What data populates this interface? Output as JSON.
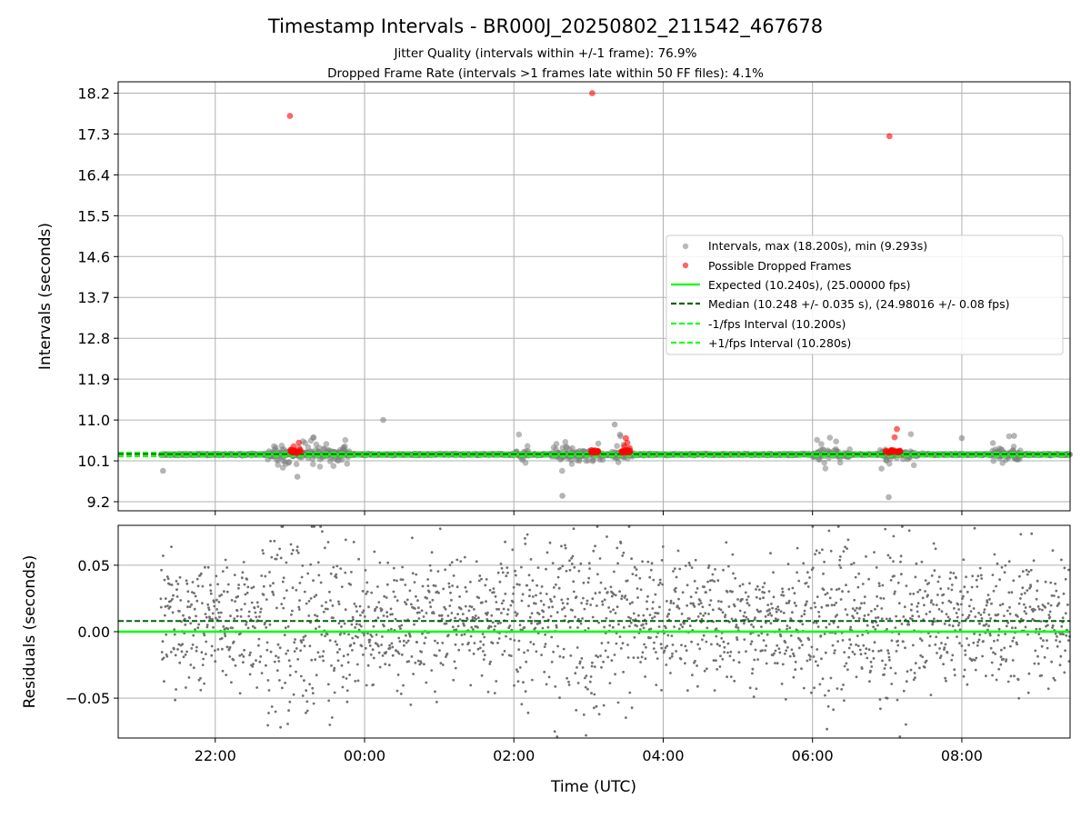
{
  "chart_data": {
    "title": "Timestamp Intervals - BR000J_20250802_211542_467678",
    "subtitles": [
      "Jitter Quality (intervals within +/-1 frame): 76.9%",
      "Dropped Frame Rate (intervals >1 frames late within 50 FF files): 4.1%"
    ],
    "xlabel": "Time (UTC)",
    "x_ticks": [
      "22:00",
      "00:00",
      "02:00",
      "04:00",
      "06:00",
      "08:00"
    ],
    "x_tick_hours": [
      22,
      24,
      26,
      28,
      30,
      32
    ],
    "x_range_hours": [
      20.7,
      33.45
    ],
    "data_start_hours": 21.27,
    "data_end_hours": 33.45,
    "top_panel": {
      "type": "scatter",
      "ylabel": "Intervals (seconds)",
      "ylim": [
        9.0,
        18.45
      ],
      "y_ticks": [
        9.2,
        10.1,
        11.0,
        11.9,
        12.8,
        13.7,
        14.6,
        15.5,
        16.4,
        17.3,
        18.2
      ],
      "y_tick_labels": [
        "9.2",
        "10.1",
        "11.0",
        "11.9",
        "12.8",
        "13.7",
        "14.6",
        "15.5",
        "16.4",
        "17.3",
        "18.2"
      ],
      "grid": true,
      "legend_position": "center-right",
      "colors": {
        "intervals": "#808080",
        "dropped": "#ff0000",
        "expected": "#00ff00",
        "median": "#006400",
        "fps_bounds": "#1aff1a"
      },
      "series": [
        {
          "name": "Intervals, max (18.200s), min (9.293s)",
          "kind": "points",
          "max": 18.2,
          "min": 9.293
        },
        {
          "name": "Possible Dropped Frames",
          "kind": "points",
          "points": [
            [
              23.0,
              17.7
            ],
            [
              27.05,
              18.2
            ],
            [
              31.03,
              17.25
            ],
            [
              23.02,
              10.35
            ],
            [
              23.05,
              10.42
            ],
            [
              23.08,
              10.3
            ],
            [
              23.1,
              10.28
            ],
            [
              23.12,
              10.5
            ],
            [
              23.15,
              10.3
            ],
            [
              27.05,
              10.3
            ],
            [
              27.08,
              10.28
            ],
            [
              27.12,
              10.32
            ],
            [
              27.45,
              10.3
            ],
            [
              27.48,
              10.42
            ],
            [
              27.5,
              10.6
            ],
            [
              27.52,
              10.5
            ],
            [
              27.55,
              10.38
            ],
            [
              30.98,
              10.3
            ],
            [
              31.02,
              10.28
            ],
            [
              31.06,
              10.3
            ],
            [
              31.1,
              10.62
            ],
            [
              31.13,
              10.8
            ],
            [
              31.16,
              10.32
            ]
          ]
        },
        {
          "name": "Expected (10.240s), (25.00000 fps)",
          "kind": "hline",
          "y": 10.24
        },
        {
          "name": "Median (10.248 +/- 0.035 s), (24.98016 +/- 0.08 fps)",
          "kind": "hline",
          "y": 10.248
        },
        {
          "name": "-1/fps Interval (10.200s)",
          "kind": "hline",
          "y": 10.2
        },
        {
          "name": "+1/fps Interval (10.280s)",
          "kind": "hline",
          "y": 10.28
        }
      ]
    },
    "bottom_panel": {
      "type": "scatter",
      "ylabel": "Residuals (seconds)",
      "ylim": [
        -0.08,
        0.08
      ],
      "y_ticks": [
        -0.05,
        0.0,
        0.05
      ],
      "y_tick_labels": [
        "−0.05",
        "0.00",
        "0.05"
      ],
      "grid": true,
      "series": [
        {
          "name": "Residuals",
          "kind": "points",
          "count": 2200
        },
        {
          "name": "Expected",
          "kind": "hline",
          "y": 0.0
        },
        {
          "name": "Median",
          "kind": "hline",
          "y": 0.008
        }
      ]
    }
  }
}
